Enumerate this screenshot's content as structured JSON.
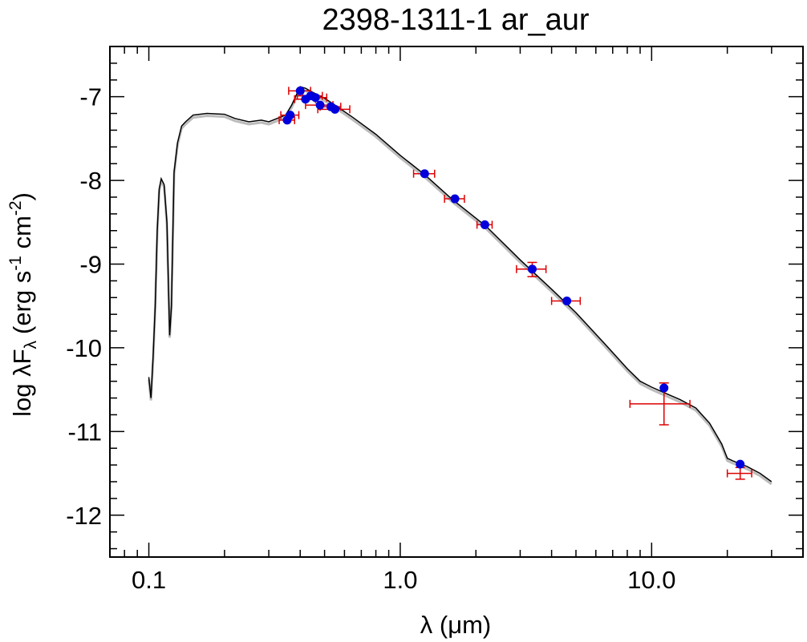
{
  "chart_data": {
    "type": "scatter",
    "title": "2398-1311-1   ar_aur",
    "xlabel": "λ (μm)",
    "ylabel": {
      "main": "log λF",
      "sub": "λ",
      "units_pre": "(erg s",
      "exp1": "-1",
      "units_mid": " cm",
      "exp2": "-2",
      "units_post": ")"
    },
    "x_scale": "log",
    "xlim": [
      0.07,
      40
    ],
    "ylim": [
      -12.5,
      -6.4
    ],
    "x_ticks": [
      {
        "value": 0.1,
        "label": "0.1"
      },
      {
        "value": 1.0,
        "label": "1.0"
      },
      {
        "value": 10.0,
        "label": "10.0"
      }
    ],
    "y_ticks": [
      {
        "value": -7,
        "label": "-7"
      },
      {
        "value": -8,
        "label": "-8"
      },
      {
        "value": -9,
        "label": "-9"
      },
      {
        "value": -10,
        "label": "-10"
      },
      {
        "value": -11,
        "label": "-11"
      },
      {
        "value": -12,
        "label": "-12"
      }
    ],
    "colors": {
      "model": "#000000",
      "model_unreddened": "#bbbbbb",
      "points": "#0000dd",
      "errors": "#dd0000"
    },
    "model_curve": [
      [
        0.1,
        -10.35
      ],
      [
        0.102,
        -10.6
      ],
      [
        0.104,
        -10.1
      ],
      [
        0.106,
        -9.5
      ],
      [
        0.108,
        -8.6
      ],
      [
        0.11,
        -8.1
      ],
      [
        0.112,
        -7.98
      ],
      [
        0.115,
        -8.05
      ],
      [
        0.118,
        -8.5
      ],
      [
        0.121,
        -9.85
      ],
      [
        0.123,
        -9.5
      ],
      [
        0.126,
        -7.9
      ],
      [
        0.13,
        -7.55
      ],
      [
        0.135,
        -7.35
      ],
      [
        0.14,
        -7.3
      ],
      [
        0.15,
        -7.22
      ],
      [
        0.17,
        -7.2
      ],
      [
        0.2,
        -7.21
      ],
      [
        0.22,
        -7.26
      ],
      [
        0.25,
        -7.3
      ],
      [
        0.28,
        -7.28
      ],
      [
        0.3,
        -7.3
      ],
      [
        0.33,
        -7.25
      ],
      [
        0.35,
        -7.22
      ],
      [
        0.37,
        -7.1
      ],
      [
        0.39,
        -6.95
      ],
      [
        0.4,
        -6.88
      ],
      [
        0.42,
        -6.9
      ],
      [
        0.45,
        -6.95
      ],
      [
        0.5,
        -7.02
      ],
      [
        0.55,
        -7.1
      ],
      [
        0.65,
        -7.25
      ],
      [
        0.8,
        -7.45
      ],
      [
        1.0,
        -7.7
      ],
      [
        1.25,
        -7.93
      ],
      [
        1.6,
        -8.22
      ],
      [
        2.2,
        -8.55
      ],
      [
        3.0,
        -8.95
      ],
      [
        4.0,
        -9.3
      ],
      [
        5.0,
        -9.58
      ],
      [
        6.5,
        -9.95
      ],
      [
        8.0,
        -10.25
      ],
      [
        9.0,
        -10.4
      ],
      [
        10.0,
        -10.47
      ],
      [
        11.5,
        -10.55
      ],
      [
        13.0,
        -10.62
      ],
      [
        15.0,
        -10.72
      ],
      [
        17.0,
        -10.9
      ],
      [
        19.0,
        -11.15
      ],
      [
        20.0,
        -11.32
      ],
      [
        21.0,
        -11.35
      ],
      [
        24.0,
        -11.42
      ],
      [
        27.0,
        -11.5
      ],
      [
        30.0,
        -11.6
      ]
    ],
    "points": [
      {
        "x": 0.355,
        "y": -7.28,
        "xerr": 0.025,
        "ylo": -7.3,
        "yhi": -7.3
      },
      {
        "x": 0.365,
        "y": -7.22,
        "xerr": 0.03,
        "ylo": -7.2,
        "yhi": -7.2
      },
      {
        "x": 0.4,
        "y": -6.93,
        "xerr": 0.04,
        "ylo": -6.93,
        "yhi": -6.93
      },
      {
        "x": 0.42,
        "y": -7.03,
        "xerr": 0.04,
        "ylo": -7.03,
        "yhi": -7.03
      },
      {
        "x": 0.44,
        "y": -6.99,
        "xerr": 0.05,
        "ylo": -6.99,
        "yhi": -6.99
      },
      {
        "x": 0.46,
        "y": -7.01,
        "xerr": 0.05,
        "ylo": -7.01,
        "yhi": -7.01
      },
      {
        "x": 0.48,
        "y": -7.1,
        "xerr": 0.06,
        "ylo": -7.1,
        "yhi": -7.1
      },
      {
        "x": 0.53,
        "y": -7.12,
        "xerr": 0.05,
        "ylo": -7.12,
        "yhi": -7.12
      },
      {
        "x": 0.55,
        "y": -7.15,
        "xerr": 0.08,
        "ylo": -7.12,
        "yhi": -7.12
      },
      {
        "x": 1.25,
        "y": -7.92,
        "xerr": 0.12,
        "ylo": -7.92,
        "yhi": -7.92
      },
      {
        "x": 1.65,
        "y": -8.22,
        "xerr": 0.15,
        "ylo": -8.22,
        "yhi": -8.22
      },
      {
        "x": 2.17,
        "y": -8.53,
        "xerr": 0.15,
        "ylo": -8.53,
        "yhi": -8.53
      },
      {
        "x": 3.35,
        "y": -9.06,
        "xerr": 0.45,
        "ylo": -9.15,
        "yhi": -8.98
      },
      {
        "x": 4.6,
        "y": -9.44,
        "xerr": 0.6,
        "ylo": -9.44,
        "yhi": -9.44
      },
      {
        "x": 11.2,
        "y": -10.48,
        "xerr": 3.0,
        "ylo": -10.92,
        "yhi": -10.42,
        "ycenter": -10.67
      },
      {
        "x": 22.5,
        "y": -11.39,
        "xerr": 2.5,
        "ylo": -11.57,
        "yhi": -11.43,
        "ycenter": -11.5
      }
    ]
  }
}
